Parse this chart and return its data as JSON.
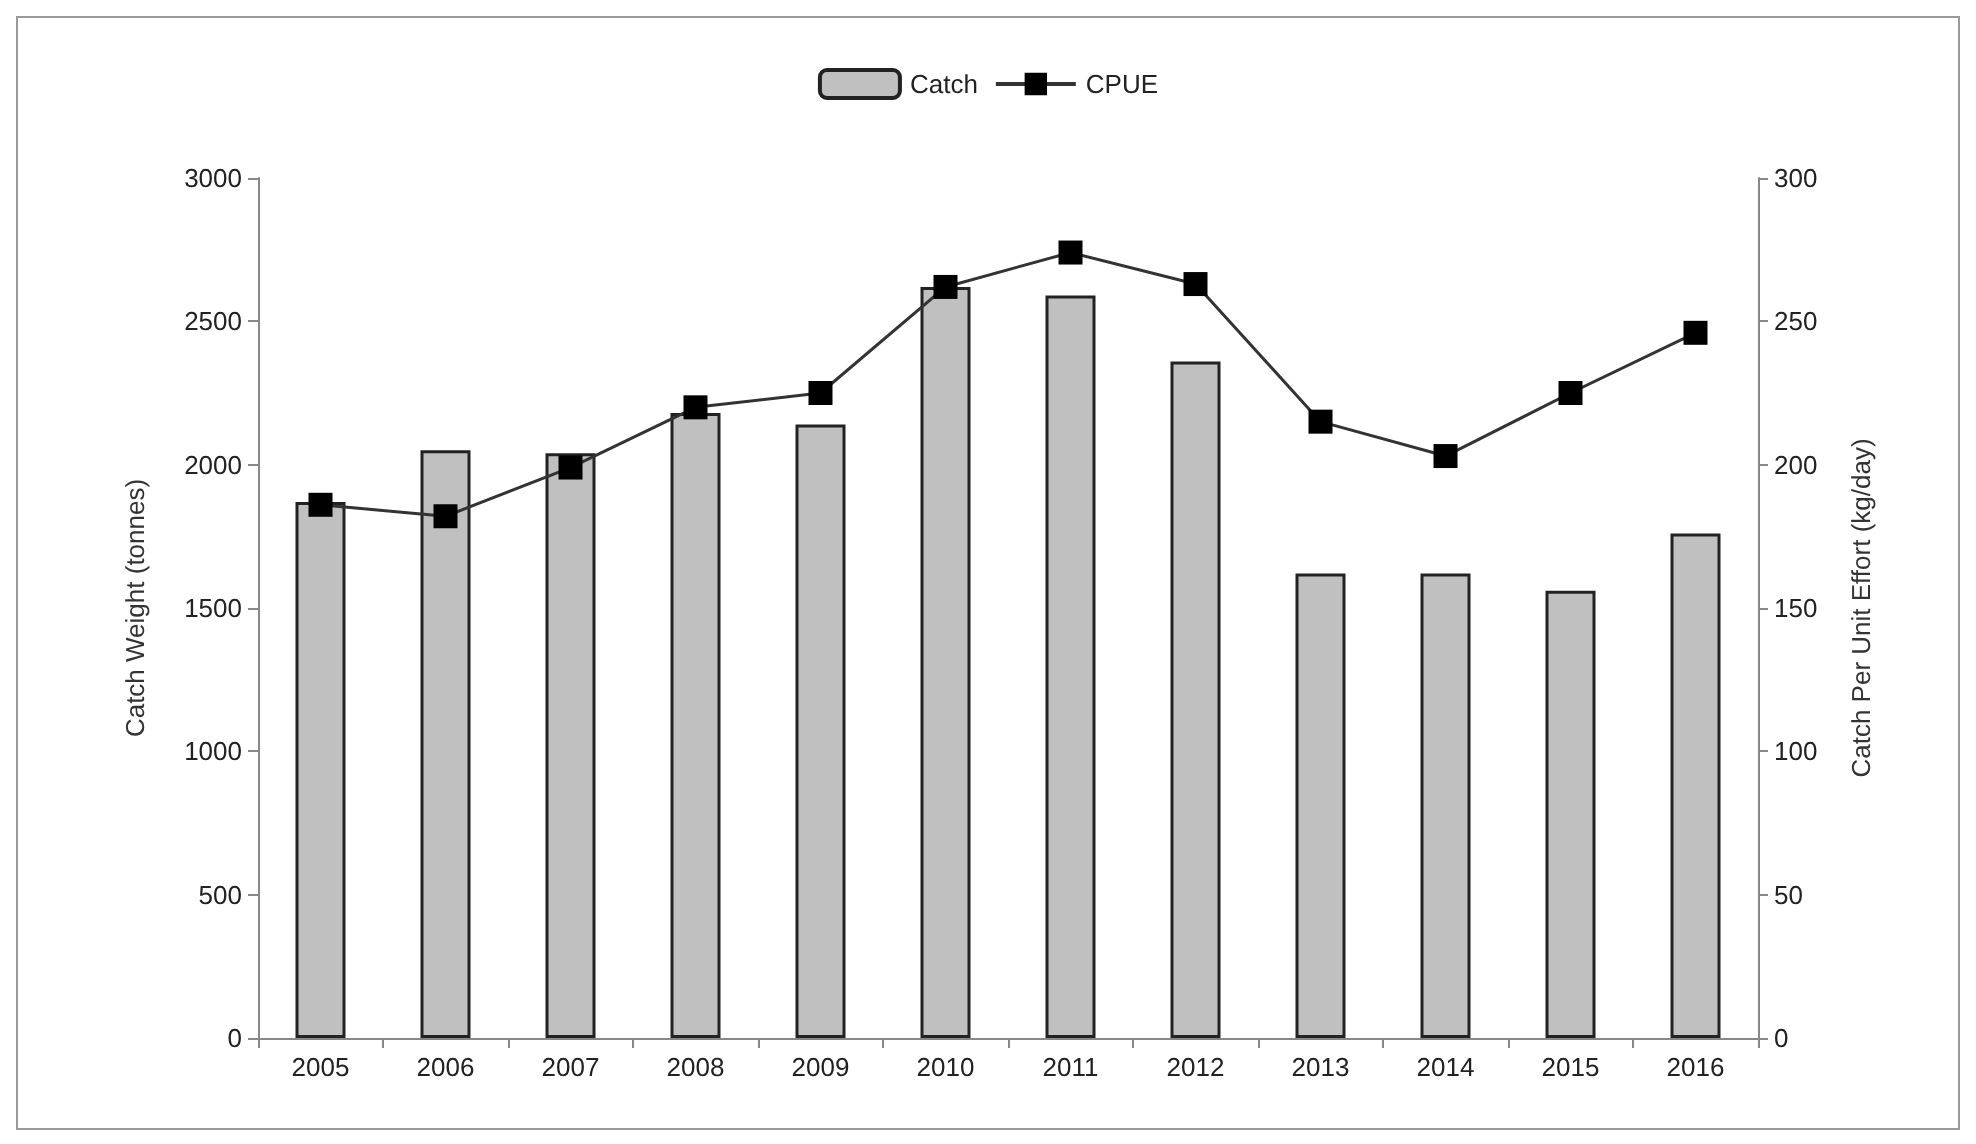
{
  "chart_data": {
    "type": "bar",
    "categories": [
      "2005",
      "2006",
      "2007",
      "2008",
      "2009",
      "2010",
      "2011",
      "2012",
      "2013",
      "2014",
      "2015",
      "2016"
    ],
    "series": [
      {
        "name": "Catch",
        "color": "#c0c0c0",
        "values": [
          1870,
          2050,
          2040,
          2180,
          2140,
          2620,
          2590,
          2360,
          1620,
          1620,
          1560,
          1760
        ]
      },
      {
        "name": "CPUE",
        "type": "line",
        "axis": "y2",
        "color": "#000000",
        "values": [
          186,
          182,
          199,
          220,
          225,
          262,
          274,
          263,
          215,
          203,
          225,
          246
        ]
      }
    ],
    "ylabel": "Catch Weight (tonnes)",
    "y2label": "Catch Per Unit Effort (kg/day)",
    "ylim": [
      0,
      3000
    ],
    "yticks": [
      0,
      500,
      1000,
      1500,
      2000,
      2500,
      3000
    ],
    "y2lim": [
      0,
      300
    ],
    "y2ticks": [
      0,
      50,
      100,
      150,
      200,
      250,
      300
    ],
    "legend": "top",
    "grid": false,
    "marker": "square",
    "line_style": "solid"
  }
}
